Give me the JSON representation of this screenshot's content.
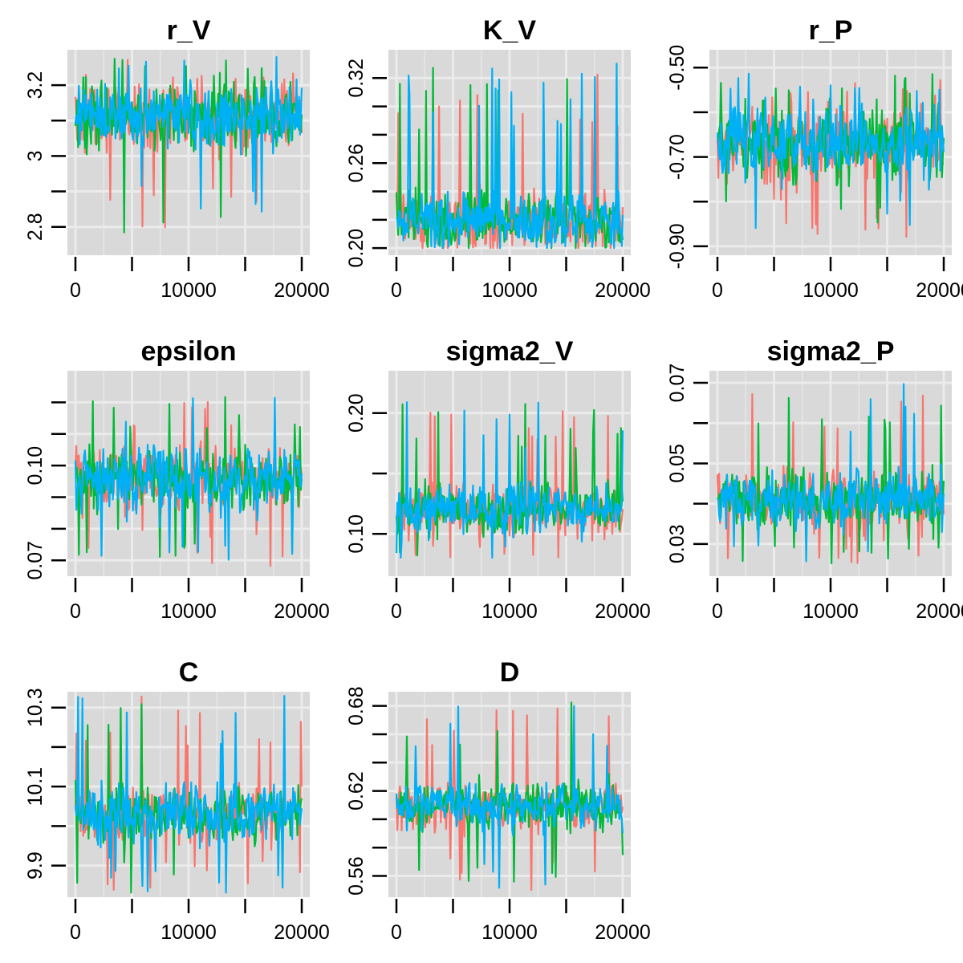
{
  "chart_data": [
    {
      "type": "line",
      "title": "r_V",
      "x_range": [
        0,
        20000
      ],
      "y_range": [
        2.72,
        3.3
      ],
      "x_ticks": [
        0,
        10000,
        20000
      ],
      "x_minor_ticks": [
        5000,
        15000
      ],
      "y_ticks": [
        2.8,
        3.0,
        3.2
      ],
      "y_minor_ticks": [
        2.9,
        3.1
      ],
      "band": {
        "center": 3.11,
        "spread": 0.09,
        "spike_up": 0.17,
        "spike_down": 0.34
      },
      "series_colors": [
        "#F8766D",
        "#00BA38",
        "#00B0F6"
      ]
    },
    {
      "type": "line",
      "title": "K_V",
      "x_range": [
        0,
        20000
      ],
      "y_range": [
        0.195,
        0.34
      ],
      "x_ticks": [
        0,
        10000,
        20000
      ],
      "x_minor_ticks": [
        5000,
        15000
      ],
      "y_ticks": [
        0.2,
        0.26,
        0.32
      ],
      "y_minor_ticks": [
        0.22,
        0.24,
        0.28,
        0.3
      ],
      "band": {
        "center": 0.22,
        "spread": 0.02,
        "spike_up": 0.115,
        "spike_down": 0.02,
        "floor": 0.2
      },
      "series_colors": [
        "#F8766D",
        "#00BA38",
        "#00B0F6"
      ]
    },
    {
      "type": "line",
      "title": "r_P",
      "x_range": [
        0,
        20000
      ],
      "y_range": [
        -0.92,
        -0.46
      ],
      "x_ticks": [
        0,
        10000,
        20000
      ],
      "x_minor_ticks": [
        5000,
        15000
      ],
      "y_ticks": [
        -0.9,
        -0.7,
        -0.5
      ],
      "y_minor_ticks": [
        -0.8,
        -0.6
      ],
      "band": {
        "center": -0.67,
        "spread": 0.08,
        "spike_up": 0.16,
        "spike_down": 0.22
      },
      "series_colors": [
        "#F8766D",
        "#00BA38",
        "#00B0F6"
      ]
    },
    {
      "type": "line",
      "title": "epsilon",
      "x_range": [
        0,
        20000
      ],
      "y_range": [
        0.065,
        0.13
      ],
      "x_ticks": [
        0,
        10000,
        20000
      ],
      "x_minor_ticks": [
        5000,
        15000
      ],
      "y_ticks": [
        0.07,
        0.1
      ],
      "y_minor_ticks": [
        0.08,
        0.09,
        0.11,
        0.12
      ],
      "band": {
        "center": 0.096,
        "spread": 0.01,
        "spike_up": 0.026,
        "spike_down": 0.028
      },
      "series_colors": [
        "#F8766D",
        "#00BA38",
        "#00B0F6"
      ]
    },
    {
      "type": "line",
      "title": "sigma2_V",
      "x_range": [
        0,
        20000
      ],
      "y_range": [
        0.065,
        0.235
      ],
      "x_ticks": [
        0,
        10000,
        20000
      ],
      "x_minor_ticks": [
        5000,
        15000
      ],
      "y_ticks": [
        0.1,
        0.2
      ],
      "y_minor_ticks": [
        0.15
      ],
      "band": {
        "center": 0.12,
        "spread": 0.02,
        "spike_up": 0.09,
        "spike_down": 0.04
      },
      "series_colors": [
        "#F8766D",
        "#00BA38",
        "#00B0F6"
      ]
    },
    {
      "type": "line",
      "title": "sigma2_P",
      "x_range": [
        0,
        20000
      ],
      "y_range": [
        0.022,
        0.073
      ],
      "x_ticks": [
        0,
        10000,
        20000
      ],
      "x_minor_ticks": [
        5000,
        15000
      ],
      "y_ticks": [
        0.03,
        0.05,
        0.07
      ],
      "y_minor_ticks": [
        0.04,
        0.06
      ],
      "band": {
        "center": 0.041,
        "spread": 0.007,
        "spike_up": 0.029,
        "spike_down": 0.016
      },
      "series_colors": [
        "#F8766D",
        "#00BA38",
        "#00B0F6"
      ]
    },
    {
      "type": "line",
      "title": "C",
      "x_range": [
        0,
        20000
      ],
      "y_range": [
        9.82,
        10.34
      ],
      "x_ticks": [
        0,
        10000,
        20000
      ],
      "x_minor_ticks": [
        5000,
        15000
      ],
      "y_ticks": [
        9.9,
        10.1,
        10.3
      ],
      "y_minor_ticks": [
        10.0,
        10.2
      ],
      "band": {
        "center": 10.03,
        "spread": 0.07,
        "spike_up": 0.3,
        "spike_down": 0.2
      },
      "series_colors": [
        "#F8766D",
        "#00BA38",
        "#00B0F6"
      ]
    },
    {
      "type": "line",
      "title": "D",
      "x_range": [
        0,
        20000
      ],
      "y_range": [
        0.545,
        0.69
      ],
      "x_ticks": [
        0,
        10000,
        20000
      ],
      "x_minor_ticks": [
        5000,
        15000
      ],
      "y_ticks": [
        0.56,
        0.62,
        0.68
      ],
      "y_minor_ticks": [
        0.58,
        0.6,
        0.64,
        0.66
      ],
      "band": {
        "center": 0.609,
        "spread": 0.016,
        "spike_up": 0.075,
        "spike_down": 0.06
      },
      "series_colors": [
        "#F8766D",
        "#00BA38",
        "#00B0F6"
      ]
    }
  ]
}
